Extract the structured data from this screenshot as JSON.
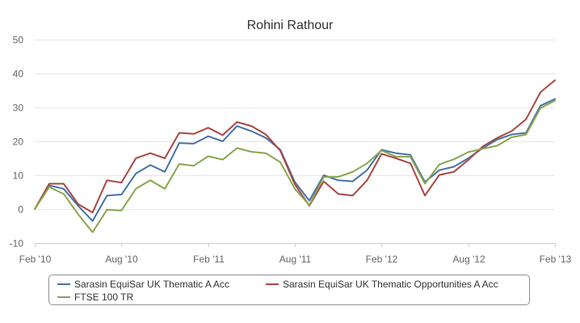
{
  "chart_data": {
    "type": "line",
    "title": "Rohini Rathour",
    "xlabel": "",
    "ylabel": "",
    "ylim": [
      -10,
      50
    ],
    "yticks": [
      "50",
      "40",
      "30",
      "20",
      "10",
      "0",
      "-10"
    ],
    "xticks": [
      "Feb '10",
      "Aug '10",
      "Feb '11",
      "Aug '11",
      "Feb '12",
      "Aug '12",
      "Feb '13"
    ],
    "grid": "horizontal",
    "legend": "bottom",
    "x": [
      "2010-02",
      "2010-03",
      "2010-04",
      "2010-05",
      "2010-06",
      "2010-07",
      "2010-08",
      "2010-09",
      "2010-10",
      "2010-11",
      "2010-12",
      "2011-01",
      "2011-02",
      "2011-03",
      "2011-04",
      "2011-05",
      "2011-06",
      "2011-07",
      "2011-08",
      "2011-09",
      "2011-10",
      "2011-11",
      "2011-12",
      "2012-01",
      "2012-02",
      "2012-03",
      "2012-04",
      "2012-05",
      "2012-06",
      "2012-07",
      "2012-08",
      "2012-09",
      "2012-10",
      "2012-11",
      "2012-12",
      "2013-01",
      "2013-02"
    ],
    "series": [
      {
        "name": "Sarasin EquiSar UK Thematic A Acc",
        "color": "#4572a7",
        "values": [
          0,
          7,
          6,
          1,
          -3.5,
          4,
          4.3,
          10.5,
          13,
          11,
          19.5,
          19.3,
          21.5,
          20,
          24.5,
          23,
          21,
          17.5,
          8,
          2.5,
          10,
          8.5,
          8.2,
          11.5,
          17.5,
          16.5,
          16,
          8,
          11.5,
          12.5,
          15,
          18,
          20.5,
          22,
          22.5,
          30.5,
          32.5
        ]
      },
      {
        "name": "Sarasin EquiSar UK Thematic Opportunities A Acc",
        "color": "#aa4643",
        "values": [
          0,
          7.5,
          7.5,
          1.5,
          -1,
          8.5,
          7.8,
          15,
          16.5,
          15,
          22.5,
          22.2,
          24,
          21.8,
          25.7,
          24.5,
          22,
          17.2,
          7.3,
          1,
          8.2,
          4.5,
          4,
          8.5,
          16.3,
          15,
          13.5,
          4,
          10.1,
          11,
          14.5,
          18.5,
          21,
          23,
          26.5,
          34.5,
          38
        ]
      },
      {
        "name": "FTSE 100 TR",
        "color": "#89a54e",
        "values": [
          0,
          6.5,
          4.5,
          -1.5,
          -6.8,
          -0.2,
          -0.4,
          6,
          8.5,
          6,
          13.3,
          12.8,
          15.6,
          14.6,
          18,
          16.9,
          16.5,
          13.8,
          6,
          1.2,
          9.5,
          9.5,
          11,
          13.5,
          17.3,
          15.5,
          15.4,
          7.5,
          13.2,
          14.7,
          16.8,
          17.8,
          18.7,
          21.2,
          22,
          29.8,
          32
        ]
      }
    ]
  }
}
